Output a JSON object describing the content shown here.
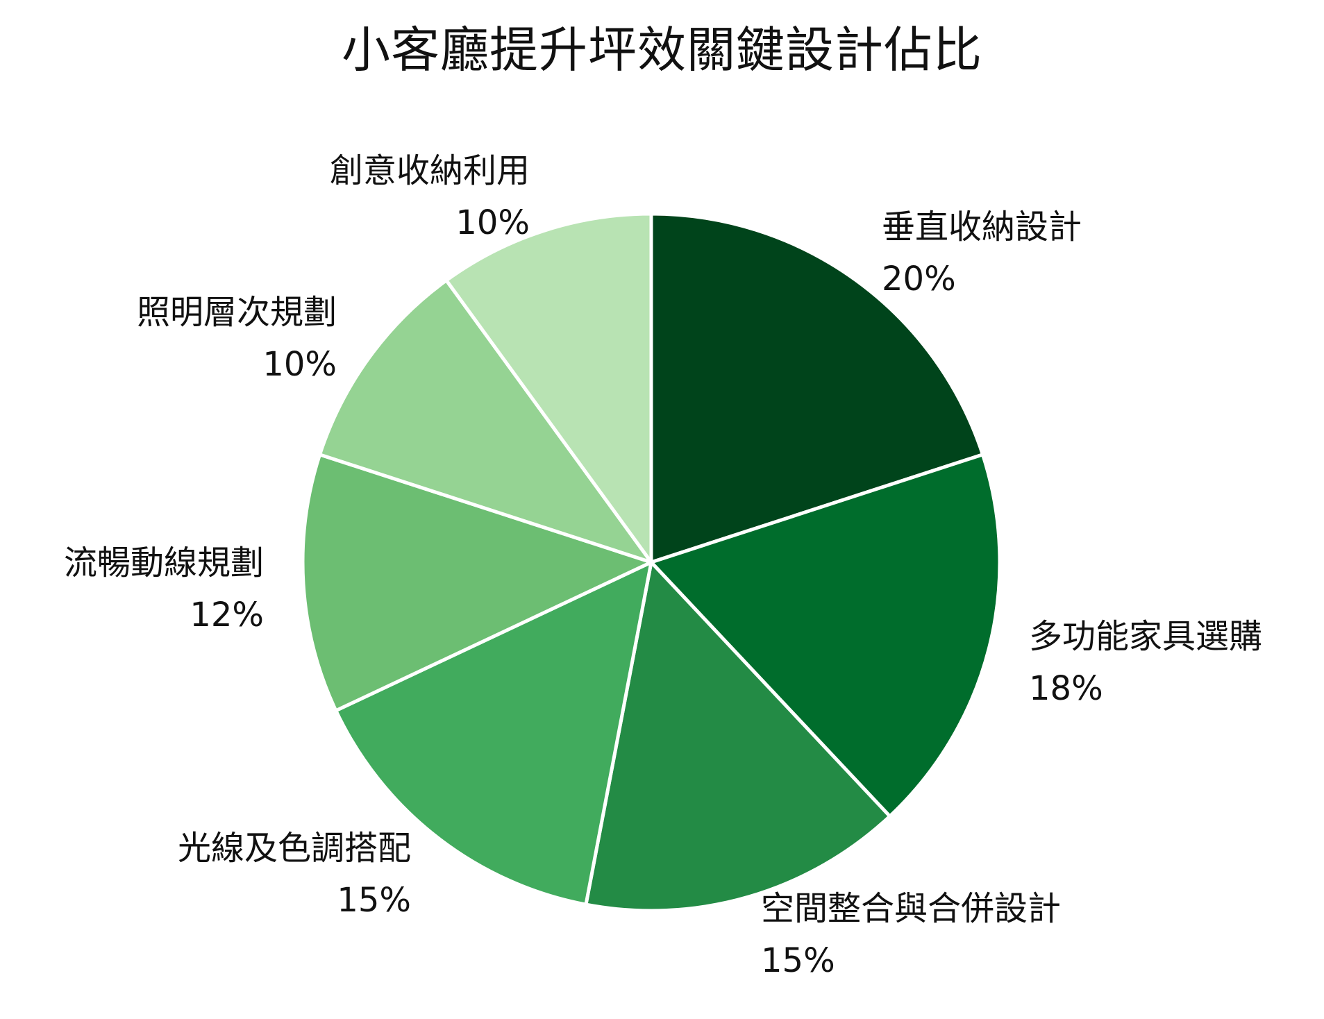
{
  "chart_data": {
    "type": "pie",
    "title": "小客廳提升坪效關鍵設計佔比",
    "categories": [
      "垂直收納設計",
      "多功能家具選購",
      "空間整合與合併設計",
      "光線及色調搭配",
      "流暢動線規劃",
      "照明層次規劃",
      "創意收納利用"
    ],
    "values": [
      20,
      18,
      15,
      15,
      12,
      10,
      10
    ],
    "value_labels": [
      "20%",
      "18%",
      "15%",
      "15%",
      "12%",
      "10%",
      "10%"
    ],
    "colors": [
      "#00441b",
      "#006d2c",
      "#238b45",
      "#41ab5d",
      "#6cbe72",
      "#95d393",
      "#b8e3b3"
    ],
    "start_angle": "12 o'clock",
    "direction": "clockwise",
    "legend": "none",
    "label_placement": "outside, next to each slice"
  }
}
